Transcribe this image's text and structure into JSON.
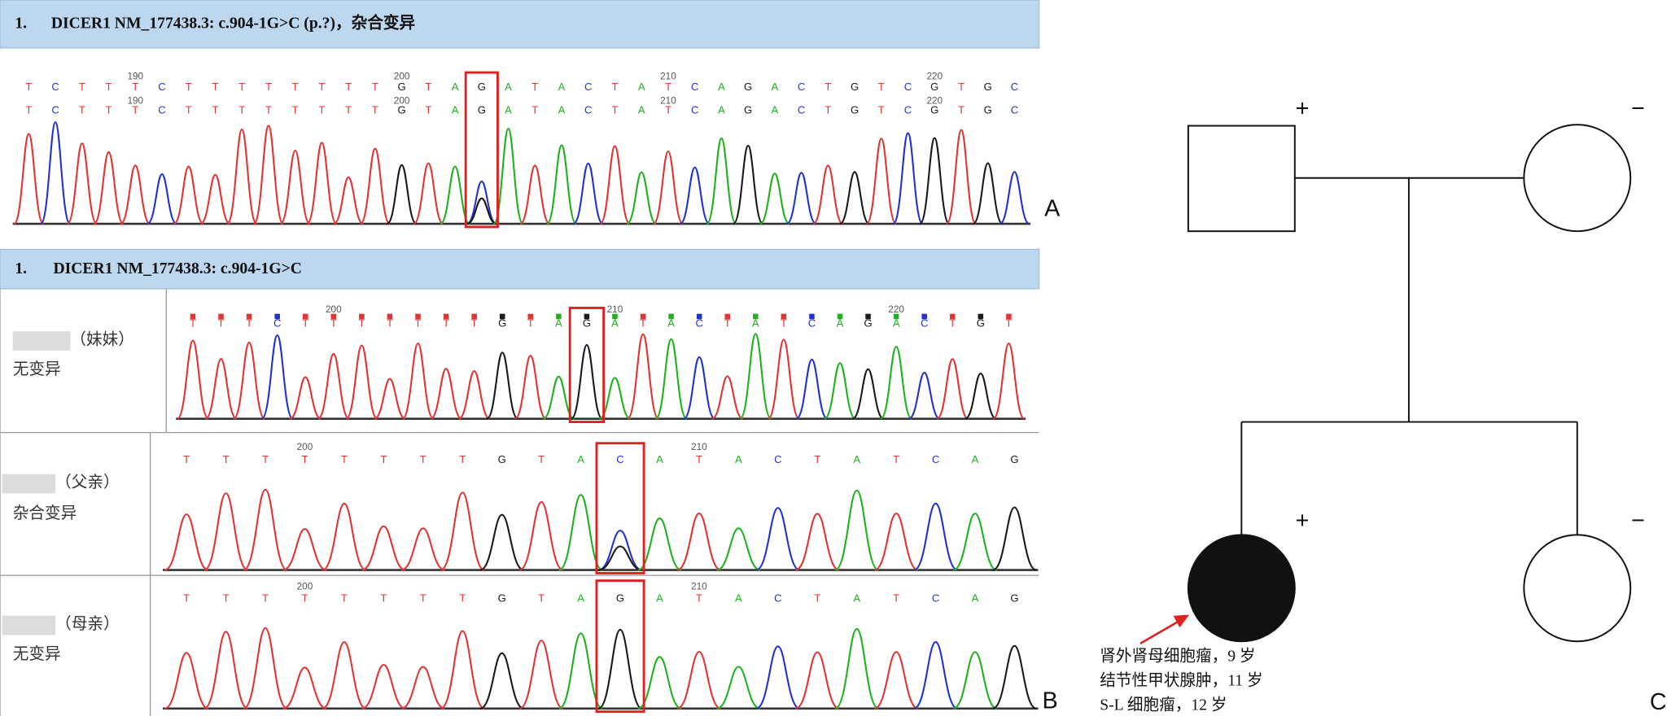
{
  "panel_a": {
    "header": {
      "number": "1.",
      "text": "DICER1 NM_177438.3: c.904-1G>C (p.?)，杂合变异"
    },
    "bases_1": [
      "T",
      "C",
      "T",
      "T",
      "T",
      "C",
      "T",
      "T",
      "T",
      "T",
      "T",
      "T",
      "T",
      "T",
      "G",
      "T",
      "A",
      "G",
      "A",
      "T",
      "A",
      "C",
      "T",
      "A",
      "T",
      "C",
      "A",
      "G",
      "A",
      "C",
      "T",
      "G",
      "T",
      "C",
      "G",
      "T",
      "G",
      "C"
    ],
    "bases_2": [
      "T",
      "C",
      "T",
      "T",
      "T",
      "C",
      "T",
      "T",
      "T",
      "T",
      "T",
      "T",
      "T",
      "T",
      "G",
      "T",
      "A",
      "G",
      "A",
      "T",
      "A",
      "C",
      "T",
      "A",
      "T",
      "C",
      "A",
      "G",
      "A",
      "C",
      "T",
      "G",
      "T",
      "C",
      "G",
      "T",
      "G",
      "C"
    ],
    "positions_1": [
      null,
      null,
      null,
      null,
      "190",
      null,
      null,
      null,
      null,
      null,
      null,
      null,
      null,
      null,
      "200",
      null,
      null,
      null,
      null,
      null,
      null,
      null,
      null,
      null,
      "210",
      null,
      null,
      null,
      null,
      null,
      null,
      null,
      null,
      null,
      "220",
      null,
      null,
      null
    ],
    "positions_2": [
      null,
      null,
      null,
      null,
      "190",
      null,
      null,
      null,
      null,
      null,
      null,
      null,
      null,
      null,
      "200",
      null,
      null,
      null,
      null,
      null,
      null,
      null,
      null,
      null,
      "210",
      null,
      null,
      null,
      null,
      null,
      null,
      null,
      null,
      null,
      "220",
      null,
      null,
      null
    ],
    "label": "A"
  },
  "panel_b": {
    "header": {
      "number": "1.",
      "text": "DICER1 NM_177438.3: c.904-1G>C"
    },
    "rows": [
      {
        "relation": "（妹妹）",
        "status": "无变异",
        "bases": [
          "T",
          "T",
          "T",
          "C",
          "T",
          "T",
          "T",
          "T",
          "T",
          "T",
          "T",
          "G",
          "T",
          "A",
          "G",
          "A",
          "T",
          "A",
          "C",
          "T",
          "A",
          "T",
          "C",
          "A",
          "G",
          "A",
          "C",
          "T",
          "G",
          "T"
        ],
        "positions": [
          null,
          null,
          null,
          null,
          null,
          "200",
          null,
          null,
          null,
          null,
          null,
          null,
          null,
          null,
          null,
          "210",
          null,
          null,
          null,
          null,
          null,
          null,
          null,
          null,
          null,
          "220",
          null,
          null,
          null,
          null
        ]
      },
      {
        "relation": "（父亲）",
        "status": "杂合变异",
        "bases": [
          "T",
          "T",
          "T",
          "T",
          "T",
          "T",
          "T",
          "T",
          "G",
          "T",
          "A",
          "C",
          "A",
          "T",
          "A",
          "C",
          "T",
          "A",
          "T",
          "C",
          "A",
          "G"
        ],
        "positions": [
          null,
          null,
          null,
          "200",
          null,
          null,
          null,
          null,
          null,
          null,
          null,
          null,
          null,
          "210",
          null,
          null,
          null,
          null,
          null,
          null,
          null,
          null
        ]
      },
      {
        "relation": "（母亲）",
        "status": "无变异",
        "bases": [
          "T",
          "T",
          "T",
          "T",
          "T",
          "T",
          "T",
          "T",
          "G",
          "T",
          "A",
          "G",
          "A",
          "T",
          "A",
          "C",
          "T",
          "A",
          "T",
          "C",
          "A",
          "G"
        ],
        "positions": [
          null,
          null,
          null,
          "200",
          null,
          null,
          null,
          null,
          null,
          null,
          null,
          null,
          null,
          "210",
          null,
          null,
          null,
          null,
          null,
          null,
          null,
          null
        ]
      }
    ],
    "label": "B"
  },
  "panel_c": {
    "father_sign": "+",
    "mother_sign": "−",
    "proband_sign": "+",
    "sister_sign": "−",
    "proband_notes": [
      "肾外肾母细胞瘤，9 岁",
      "结节性甲状腺肿，11 岁",
      "S-L 细胞瘤，12 岁"
    ],
    "label": "C"
  }
}
